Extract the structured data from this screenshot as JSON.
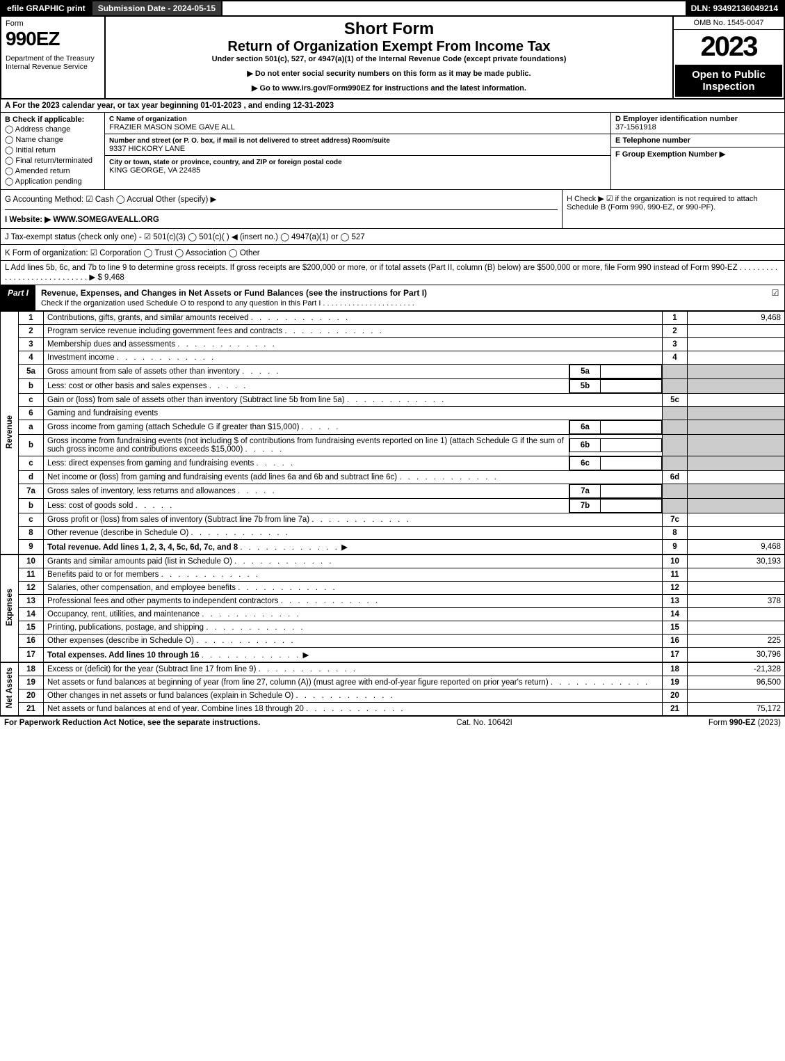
{
  "topbar": {
    "efile": "efile GRAPHIC print",
    "subdate": "Submission Date - 2024-05-15",
    "dln": "DLN: 93492136049214"
  },
  "header": {
    "form": "Form",
    "formno": "990EZ",
    "dept": "Department of the Treasury\nInternal Revenue Service",
    "title1": "Short Form",
    "title2": "Return of Organization Exempt From Income Tax",
    "sub": "Under section 501(c), 527, or 4947(a)(1) of the Internal Revenue Code (except private foundations)",
    "note1": "▶ Do not enter social security numbers on this form as it may be made public.",
    "note2": "▶ Go to www.irs.gov/Form990EZ for instructions and the latest information.",
    "omb": "OMB No. 1545-0047",
    "year": "2023",
    "open": "Open to Public Inspection"
  },
  "A": "A  For the 2023 calendar year, or tax year beginning 01-01-2023 , and ending 12-31-2023",
  "B": {
    "hdr": "B  Check if applicable:",
    "items": [
      "Address change",
      "Name change",
      "Initial return",
      "Final return/terminated",
      "Amended return",
      "Application pending"
    ]
  },
  "C": {
    "nameLbl": "C Name of organization",
    "name": "FRAZIER MASON SOME GAVE ALL",
    "addrLbl": "Number and street (or P. O. box, if mail is not delivered to street address)        Room/suite",
    "addr": "9337 HICKORY LANE",
    "cityLbl": "City or town, state or province, country, and ZIP or foreign postal code",
    "city": "KING GEORGE, VA  22485"
  },
  "D": {
    "lbl": "D Employer identification number",
    "val": "37-1561918"
  },
  "E": {
    "lbl": "E Telephone number",
    "val": ""
  },
  "F": {
    "lbl": "F Group Exemption Number   ▶",
    "val": ""
  },
  "G": "G Accounting Method:   ☑ Cash  ◯ Accrual   Other (specify) ▶",
  "H": "H   Check ▶  ☑  if the organization is not required to attach Schedule B (Form 990, 990-EZ, or 990-PF).",
  "I": "I Website: ▶ WWW.SOMEGAVEALL.ORG",
  "J": "J Tax-exempt status (check only one) -  ☑ 501(c)(3)  ◯ 501(c)(  ) ◀ (insert no.)  ◯ 4947(a)(1) or  ◯ 527",
  "K": "K Form of organization:   ☑ Corporation   ◯ Trust   ◯ Association   ◯ Other",
  "L": "L Add lines 5b, 6c, and 7b to line 9 to determine gross receipts. If gross receipts are $200,000 or more, or if total assets (Part II, column (B) below) are $500,000 or more, file Form 990 instead of Form 990-EZ  . . . . . . . . . . . . . . . . . . . . . . . . . . . .   ▶ $ 9,468",
  "part1": {
    "label": "Part I",
    "title": "Revenue, Expenses, and Changes in Net Assets or Fund Balances (see the instructions for Part I)",
    "check": "Check if the organization used Schedule O to respond to any question in this Part I . . . . . . . . . . . . . . . . . . . . . .",
    "chk": "☑"
  },
  "rows": [
    {
      "n": "1",
      "t": "Contributions, gifts, grants, and similar amounts received",
      "rn": "1",
      "v": "9,468"
    },
    {
      "n": "2",
      "t": "Program service revenue including government fees and contracts",
      "rn": "2",
      "v": ""
    },
    {
      "n": "3",
      "t": "Membership dues and assessments",
      "rn": "3",
      "v": ""
    },
    {
      "n": "4",
      "t": "Investment income",
      "rn": "4",
      "v": ""
    },
    {
      "n": "5a",
      "t": "Gross amount from sale of assets other than inventory",
      "sub": "5a"
    },
    {
      "n": "b",
      "t": "Less: cost or other basis and sales expenses",
      "sub": "5b"
    },
    {
      "n": "c",
      "t": "Gain or (loss) from sale of assets other than inventory (Subtract line 5b from line 5a)",
      "rn": "5c",
      "v": ""
    },
    {
      "n": "6",
      "t": "Gaming and fundraising events",
      "hdr": true
    },
    {
      "n": "a",
      "t": "Gross income from gaming (attach Schedule G if greater than $15,000)",
      "sub": "6a"
    },
    {
      "n": "b",
      "t": "Gross income from fundraising events (not including $                     of contributions from fundraising events reported on line 1) (attach Schedule G if the sum of such gross income and contributions exceeds $15,000)",
      "sub": "6b"
    },
    {
      "n": "c",
      "t": "Less: direct expenses from gaming and fundraising events",
      "sub": "6c"
    },
    {
      "n": "d",
      "t": "Net income or (loss) from gaming and fundraising events (add lines 6a and 6b and subtract line 6c)",
      "rn": "6d",
      "v": ""
    },
    {
      "n": "7a",
      "t": "Gross sales of inventory, less returns and allowances",
      "sub": "7a"
    },
    {
      "n": "b",
      "t": "Less: cost of goods sold",
      "sub": "7b"
    },
    {
      "n": "c",
      "t": "Gross profit or (loss) from sales of inventory (Subtract line 7b from line 7a)",
      "rn": "7c",
      "v": ""
    },
    {
      "n": "8",
      "t": "Other revenue (describe in Schedule O)",
      "rn": "8",
      "v": ""
    },
    {
      "n": "9",
      "t": "Total revenue. Add lines 1, 2, 3, 4, 5c, 6d, 7c, and 8",
      "rn": "9",
      "v": "9,468",
      "bold": true,
      "arrow": true
    }
  ],
  "exp": [
    {
      "n": "10",
      "t": "Grants and similar amounts paid (list in Schedule O)",
      "rn": "10",
      "v": "30,193"
    },
    {
      "n": "11",
      "t": "Benefits paid to or for members",
      "rn": "11",
      "v": ""
    },
    {
      "n": "12",
      "t": "Salaries, other compensation, and employee benefits",
      "rn": "12",
      "v": ""
    },
    {
      "n": "13",
      "t": "Professional fees and other payments to independent contractors",
      "rn": "13",
      "v": "378"
    },
    {
      "n": "14",
      "t": "Occupancy, rent, utilities, and maintenance",
      "rn": "14",
      "v": ""
    },
    {
      "n": "15",
      "t": "Printing, publications, postage, and shipping",
      "rn": "15",
      "v": ""
    },
    {
      "n": "16",
      "t": "Other expenses (describe in Schedule O)",
      "rn": "16",
      "v": "225"
    },
    {
      "n": "17",
      "t": "Total expenses. Add lines 10 through 16",
      "rn": "17",
      "v": "30,796",
      "bold": true,
      "arrow": true
    }
  ],
  "net": [
    {
      "n": "18",
      "t": "Excess or (deficit) for the year (Subtract line 17 from line 9)",
      "rn": "18",
      "v": "-21,328"
    },
    {
      "n": "19",
      "t": "Net assets or fund balances at beginning of year (from line 27, column (A)) (must agree with end-of-year figure reported on prior year's return)",
      "rn": "19",
      "v": "96,500"
    },
    {
      "n": "20",
      "t": "Other changes in net assets or fund balances (explain in Schedule O)",
      "rn": "20",
      "v": ""
    },
    {
      "n": "21",
      "t": "Net assets or fund balances at end of year. Combine lines 18 through 20",
      "rn": "21",
      "v": "75,172"
    }
  ],
  "vlabels": {
    "rev": "Revenue",
    "exp": "Expenses",
    "net": "Net Assets"
  },
  "footer": {
    "left": "For Paperwork Reduction Act Notice, see the separate instructions.",
    "mid": "Cat. No. 10642I",
    "right": "Form 990-EZ (2023)"
  }
}
